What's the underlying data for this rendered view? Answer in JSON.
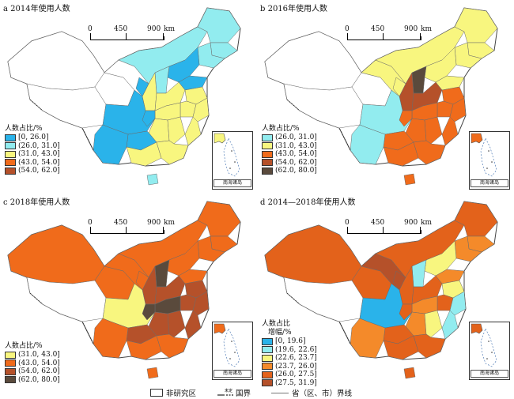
{
  "colors": {
    "c_0_26": "#2ab3ea",
    "c_26_31": "#92ecef",
    "c_31_43": "#f8f67f",
    "c_43_54": "#f06b1b",
    "c_54_62": "#b5512a",
    "c_62_80": "#5a4a3c",
    "d_0_19": "#2ab3ea",
    "d_19_22": "#92ecef",
    "d_22_23": "#f8f67f",
    "d_23_26": "#f48a2a",
    "d_26_27": "#e3621b",
    "d_27_31": "#b5512a",
    "non_study": "#ffffff",
    "border": "#555555"
  },
  "scale": {
    "zero": "0",
    "mid": "450",
    "max": "900",
    "unit": "km"
  },
  "inset_caption": "南海诸岛",
  "panels": [
    {
      "title": "a  2014年使用人数",
      "legend_title": "人数占比/%",
      "legend": [
        "[0, 26.0]",
        "(26.0, 31.0]",
        "(31.0, 43.0]",
        "(43.0, 54.0]",
        "(54.0, 62.0]"
      ]
    },
    {
      "title": "b  2016年使用人数",
      "legend_title": "人数占比/%",
      "legend": [
        "(26.0, 31.0]",
        "(31.0, 43.0]",
        "(43.0, 54.0]",
        "(54.0, 62.0]",
        "(62.0, 80.0]"
      ]
    },
    {
      "title": "c  2018年使用人数",
      "legend_title": "人数占比/%",
      "legend": [
        "(31.0, 43.0]",
        "(43.0, 54.0]",
        "(54.0, 62.0]",
        "(62.0, 80.0]"
      ]
    },
    {
      "title": "d  2014—2018年使用人数",
      "legend_title": "人数占比",
      "legend_title2": "增幅/%",
      "legend": [
        "[0, 19.6]",
        "(19.6, 22.6]",
        "(22.6, 23.7]",
        "(23.7, 26.0]",
        "(26.0, 27.5]",
        "(27.5, 31.9]"
      ]
    }
  ],
  "bottom_legend": {
    "non_study": "非研究区",
    "national_border": "国界",
    "border_mark": "未定",
    "provincial": "省（区、市）界线"
  }
}
